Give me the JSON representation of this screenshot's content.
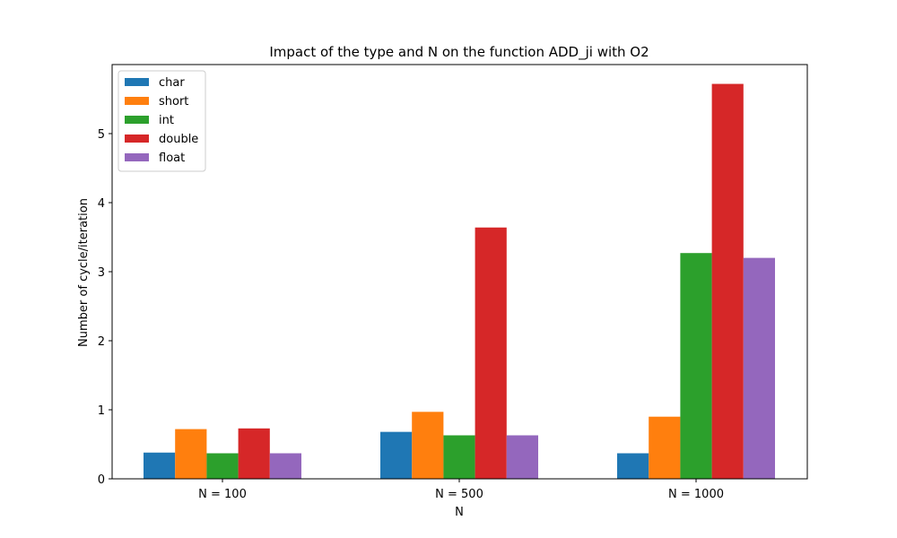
{
  "chart_data": {
    "type": "bar",
    "title": "Impact of the type and N on the function ADD_ji with O2",
    "xlabel": "N",
    "ylabel": "Number of cycle/iteration",
    "categories": [
      "N = 100",
      "N = 500",
      "N = 1000"
    ],
    "series": [
      {
        "name": "char",
        "color": "#1f77b4",
        "values": [
          0.38,
          0.68,
          0.37
        ]
      },
      {
        "name": "short",
        "color": "#ff7f0e",
        "values": [
          0.72,
          0.97,
          0.9
        ]
      },
      {
        "name": "int",
        "color": "#2ca02c",
        "values": [
          0.37,
          0.63,
          3.27
        ]
      },
      {
        "name": "double",
        "color": "#d62728",
        "values": [
          0.73,
          3.64,
          5.72
        ]
      },
      {
        "name": "float",
        "color": "#9467bd",
        "values": [
          0.37,
          0.63,
          3.2
        ]
      }
    ],
    "yticks": [
      0,
      1,
      2,
      3,
      4,
      5
    ],
    "ylim": [
      0,
      6.0
    ],
    "grid": false,
    "legend_position": "top-left"
  }
}
